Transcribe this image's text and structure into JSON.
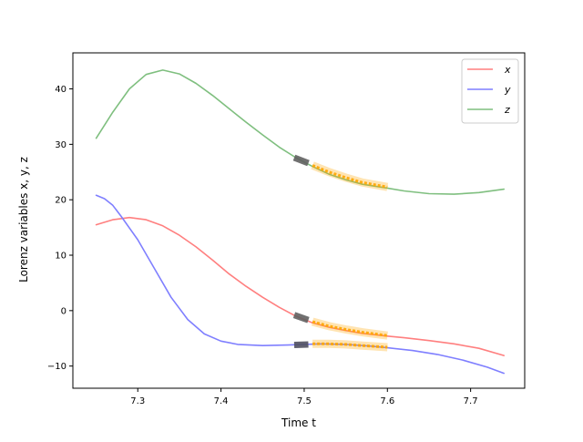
{
  "chart_data": {
    "type": "line",
    "title": "",
    "xlabel": "Time t",
    "ylabel": "Lorenz variables x, y, z",
    "xlim": [
      7.222,
      7.765
    ],
    "ylim": [
      -14.0,
      46.5
    ],
    "xticks": [
      7.3,
      7.4,
      7.5,
      7.6,
      7.7
    ],
    "yticks": [
      -10,
      0,
      10,
      20,
      30,
      40
    ],
    "xtick_labels": [
      "7.3",
      "7.4",
      "7.5",
      "7.6",
      "7.7"
    ],
    "ytick_labels": [
      "−10",
      "0",
      "10",
      "20",
      "30",
      "40"
    ],
    "grid": false,
    "legend_position": "top-right",
    "series": [
      {
        "name": "x",
        "color": "#ff7f7f",
        "points": [
          [
            7.25,
            15.5
          ],
          [
            7.27,
            16.4
          ],
          [
            7.29,
            16.8
          ],
          [
            7.31,
            16.4
          ],
          [
            7.33,
            15.3
          ],
          [
            7.35,
            13.6
          ],
          [
            7.37,
            11.5
          ],
          [
            7.39,
            9.1
          ],
          [
            7.41,
            6.6
          ],
          [
            7.43,
            4.4
          ],
          [
            7.45,
            2.4
          ],
          [
            7.47,
            0.6
          ],
          [
            7.49,
            -1.0
          ],
          [
            7.51,
            -2.2
          ],
          [
            7.53,
            -3.0
          ],
          [
            7.55,
            -3.6
          ],
          [
            7.57,
            -4.1
          ],
          [
            7.6,
            -4.6
          ],
          [
            7.62,
            -4.9
          ],
          [
            7.65,
            -5.4
          ],
          [
            7.68,
            -6.0
          ],
          [
            7.71,
            -6.8
          ],
          [
            7.74,
            -8.1
          ]
        ]
      },
      {
        "name": "y",
        "color": "#7f7fff",
        "points": [
          [
            7.25,
            20.8
          ],
          [
            7.26,
            20.2
          ],
          [
            7.27,
            19.0
          ],
          [
            7.28,
            17.0
          ],
          [
            7.3,
            12.8
          ],
          [
            7.32,
            7.6
          ],
          [
            7.34,
            2.4
          ],
          [
            7.36,
            -1.6
          ],
          [
            7.38,
            -4.2
          ],
          [
            7.4,
            -5.5
          ],
          [
            7.42,
            -6.1
          ],
          [
            7.45,
            -6.3
          ],
          [
            7.48,
            -6.2
          ],
          [
            7.5,
            -6.1
          ],
          [
            7.52,
            -6.0
          ],
          [
            7.55,
            -6.1
          ],
          [
            7.58,
            -6.4
          ],
          [
            7.6,
            -6.7
          ],
          [
            7.63,
            -7.2
          ],
          [
            7.66,
            -7.9
          ],
          [
            7.69,
            -8.9
          ],
          [
            7.72,
            -10.2
          ],
          [
            7.74,
            -11.3
          ]
        ]
      },
      {
        "name": "z",
        "color": "#7fbf7f",
        "points": [
          [
            7.25,
            31.1
          ],
          [
            7.27,
            35.8
          ],
          [
            7.29,
            40.0
          ],
          [
            7.31,
            42.6
          ],
          [
            7.33,
            43.4
          ],
          [
            7.35,
            42.7
          ],
          [
            7.37,
            41.0
          ],
          [
            7.39,
            38.8
          ],
          [
            7.41,
            36.4
          ],
          [
            7.43,
            34.0
          ],
          [
            7.45,
            31.7
          ],
          [
            7.47,
            29.5
          ],
          [
            7.49,
            27.6
          ],
          [
            7.51,
            26.0
          ],
          [
            7.53,
            24.6
          ],
          [
            7.55,
            23.6
          ],
          [
            7.57,
            22.8
          ],
          [
            7.6,
            22.1
          ],
          [
            7.62,
            21.6
          ],
          [
            7.65,
            21.1
          ],
          [
            7.68,
            21.0
          ],
          [
            7.71,
            21.3
          ],
          [
            7.74,
            21.9
          ]
        ]
      }
    ],
    "markers": {
      "dark_segments": [
        {
          "series": "x",
          "x": [
            7.488,
            7.505
          ],
          "y": [
            -0.8,
            -1.7
          ],
          "color": "#606060"
        },
        {
          "series": "y",
          "x": [
            7.488,
            7.505
          ],
          "y": [
            -6.2,
            -6.1
          ],
          "color": "#505060"
        },
        {
          "series": "z",
          "x": [
            7.488,
            7.505
          ],
          "y": [
            27.6,
            26.6
          ],
          "color": "#606060"
        }
      ],
      "highlight_segments": [
        {
          "series": "x",
          "points": [
            [
              7.51,
              -2.0
            ],
            [
              7.53,
              -2.8
            ],
            [
              7.55,
              -3.4
            ],
            [
              7.57,
              -3.9
            ],
            [
              7.6,
              -4.5
            ]
          ],
          "color": "#ffa500"
        },
        {
          "series": "y",
          "points": [
            [
              7.51,
              -6.0
            ],
            [
              7.53,
              -6.0
            ],
            [
              7.55,
              -6.1
            ],
            [
              7.57,
              -6.3
            ],
            [
              7.6,
              -6.6
            ]
          ],
          "color": "#ffa500"
        },
        {
          "series": "z",
          "points": [
            [
              7.51,
              26.2
            ],
            [
              7.53,
              25.0
            ],
            [
              7.55,
              24.0
            ],
            [
              7.57,
              23.1
            ],
            [
              7.6,
              22.3
            ]
          ],
          "color": "#ffa500"
        }
      ]
    }
  },
  "legend": {
    "items": [
      {
        "label": "x",
        "color": "#ff7f7f"
      },
      {
        "label": "y",
        "color": "#7f7fff"
      },
      {
        "label": "z",
        "color": "#7fbf7f"
      }
    ]
  }
}
